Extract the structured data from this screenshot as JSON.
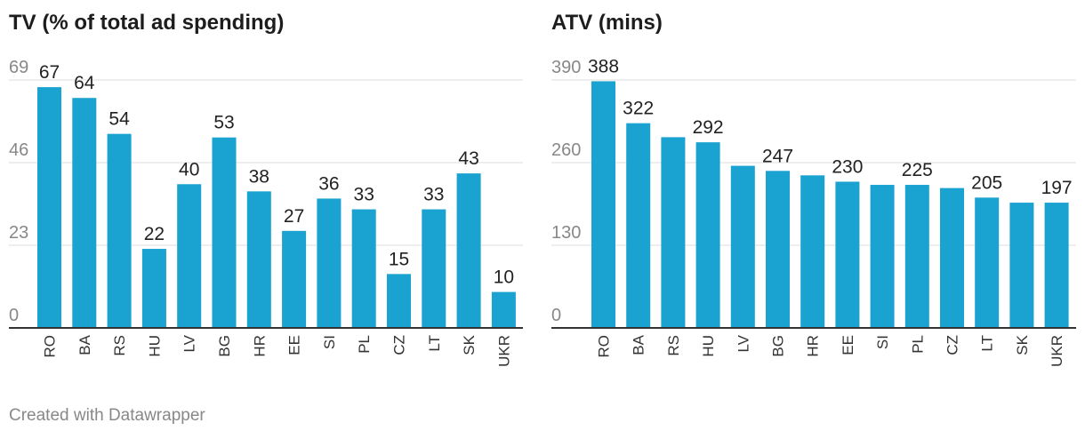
{
  "chart_data": [
    {
      "type": "bar",
      "title": "TV (% of total ad spending)",
      "categories": [
        "RO",
        "BA",
        "RS",
        "HU",
        "LV",
        "BG",
        "HR",
        "EE",
        "SI",
        "PL",
        "CZ",
        "LT",
        "SK",
        "UKR"
      ],
      "values": [
        67,
        64,
        54,
        22,
        40,
        53,
        38,
        27,
        36,
        33,
        15,
        33,
        43,
        10
      ],
      "labeled": [
        true,
        true,
        true,
        true,
        true,
        true,
        true,
        true,
        true,
        true,
        true,
        true,
        true,
        true
      ],
      "yticks": [
        0,
        23,
        46,
        69
      ],
      "ylim": [
        0,
        69
      ],
      "grid": true,
      "color": "#1aa2d0"
    },
    {
      "type": "bar",
      "title": "ATV (mins)",
      "categories": [
        "RO",
        "BA",
        "RS",
        "HU",
        "LV",
        "BG",
        "HR",
        "EE",
        "SI",
        "PL",
        "CZ",
        "LT",
        "SK",
        "UKR"
      ],
      "values": [
        388,
        322,
        300,
        292,
        255,
        247,
        240,
        230,
        225,
        225,
        220,
        205,
        197,
        197
      ],
      "labeled": [
        true,
        true,
        false,
        true,
        false,
        true,
        false,
        true,
        false,
        true,
        false,
        true,
        false,
        true
      ],
      "yticks": [
        0,
        130,
        260,
        390
      ],
      "ylim": [
        0,
        390
      ],
      "grid": true,
      "color": "#1aa2d0"
    }
  ],
  "footer": "Created with Datawrapper"
}
